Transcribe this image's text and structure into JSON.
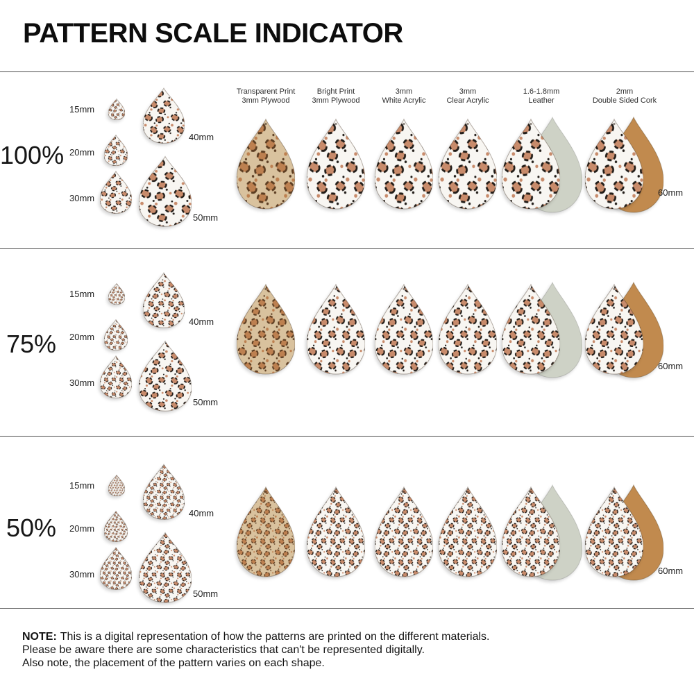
{
  "title": "PATTERN SCALE INDICATOR",
  "materials": [
    {
      "line1": "Transparent Print",
      "line2": "3mm Plywood"
    },
    {
      "line1": "Bright Print",
      "line2": "3mm Plywood"
    },
    {
      "line1": "3mm",
      "line2": "White Acrylic"
    },
    {
      "line1": "3mm",
      "line2": "Clear Acrylic"
    },
    {
      "line1": "1.6-1.8mm",
      "line2": "Leather"
    },
    {
      "line1": "2mm",
      "line2": "Double Sided Cork"
    }
  ],
  "sections": [
    {
      "scale_label": "100%",
      "sizes": {
        "s15": "15mm",
        "s20": "20mm",
        "s30": "30mm",
        "s40": "40mm",
        "s50": "50mm",
        "s60": "60mm"
      }
    },
    {
      "scale_label": "75%",
      "sizes": {
        "s15": "15mm",
        "s20": "20mm",
        "s30": "30mm",
        "s40": "40mm",
        "s50": "50mm",
        "s60": "60mm"
      }
    },
    {
      "scale_label": "50%",
      "sizes": {
        "s15": "15mm",
        "s20": "20mm",
        "s30": "30mm",
        "s40": "40mm",
        "s50": "50mm",
        "s60": "60mm"
      }
    }
  ],
  "note": {
    "prefix": "NOTE:",
    "line1": "This is a digital representation of how the patterns are printed on the different materials.",
    "line2": "Please be aware there are some characteristics that can't be represented digitally.",
    "line3": "Also note, the placement of the pattern varies on each shape."
  },
  "colors": {
    "print_bg": "#f8f6f2",
    "print_spot": "#c88b6b",
    "print_ring": "#211c18",
    "wood_bg": "#d9c29e",
    "wood_spot": "#bd8050",
    "wood_ring": "#5c3d22",
    "leather_back": "#ced2c6",
    "cork_back": "#c18a4e"
  }
}
